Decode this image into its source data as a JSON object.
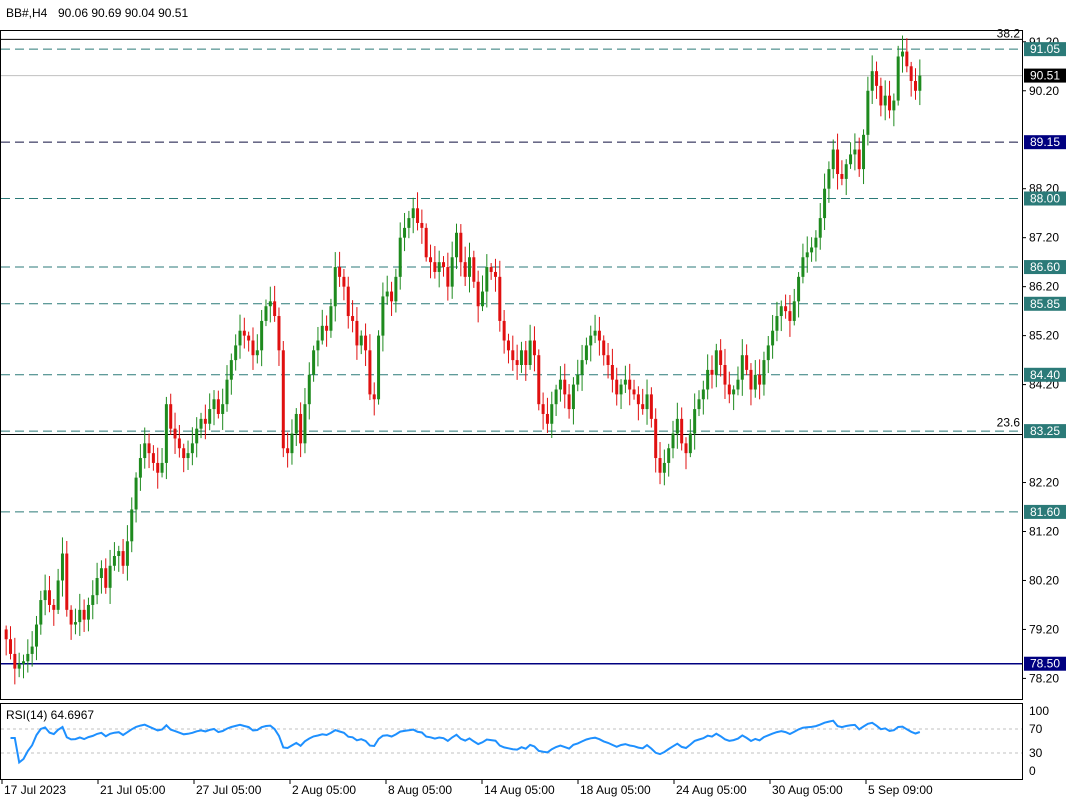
{
  "header": {
    "symbol": "BB#,H4",
    "ohlc": "90.06 90.69 90.04 90.51"
  },
  "rsi_panel": {
    "label": "RSI(14) 64.6967",
    "levels": [
      100,
      70,
      30,
      0
    ]
  },
  "colors": {
    "bull": "#1e8a1e",
    "bear": "#e01010",
    "dash_line": "#2b7a78",
    "support_line": "#000080",
    "rsi_line": "#1e90ff",
    "price_tag": "#000000"
  },
  "chart_data": {
    "type": "candlestick",
    "ylim": [
      77.8,
      91.4
    ],
    "y_ticks": [
      "91.20",
      "90.20",
      "88.20",
      "87.20",
      "86.20",
      "85.20",
      "84.20",
      "82.20",
      "81.20",
      "80.20",
      "79.20",
      "78.20"
    ],
    "x_ticks": [
      "17 Jul 2023",
      "21 Jul 05:00",
      "27 Jul 05:00",
      "2 Aug 05:00",
      "8 Aug 05:00",
      "14 Aug 05:00",
      "18 Aug 05:00",
      "24 Aug 05:00",
      "30 Aug 05:00",
      "5 Sep 09:00"
    ],
    "current_price": {
      "value": 90.51,
      "label": "90.51"
    },
    "horizontal_levels": [
      {
        "value": 91.05,
        "label": "91.05",
        "style": "dash"
      },
      {
        "value": 89.15,
        "label": "89.15",
        "style": "dash-dark"
      },
      {
        "value": 88.0,
        "label": "88.00",
        "style": "dash"
      },
      {
        "value": 86.6,
        "label": "86.60",
        "style": "dash"
      },
      {
        "value": 85.85,
        "label": "85.85",
        "style": "dash"
      },
      {
        "value": 84.4,
        "label": "84.40",
        "style": "dash"
      },
      {
        "value": 83.25,
        "label": "83.25",
        "style": "dash"
      },
      {
        "value": 81.6,
        "label": "81.60",
        "style": "dash"
      },
      {
        "value": 78.5,
        "label": "78.50",
        "style": "solid"
      }
    ],
    "fib_labels": [
      {
        "value": 91.25,
        "label": "38.2"
      },
      {
        "value": 83.3,
        "label": "23.6"
      }
    ],
    "fib_lines": [
      91.25,
      83.18
    ],
    "closes": [
      79.0,
      78.7,
      78.4,
      78.5,
      78.55,
      78.7,
      78.85,
      79.3,
      79.8,
      80.0,
      79.7,
      79.6,
      80.2,
      80.75,
      79.6,
      79.3,
      79.35,
      79.6,
      79.4,
      79.7,
      79.9,
      80.25,
      80.45,
      80.05,
      80.5,
      80.7,
      80.8,
      80.5,
      81.0,
      81.65,
      82.3,
      82.7,
      83.0,
      82.8,
      82.6,
      82.4,
      82.6,
      83.8,
      83.3,
      83.1,
      82.9,
      82.7,
      82.8,
      83.0,
      83.3,
      83.5,
      83.4,
      83.7,
      83.9,
      83.6,
      83.8,
      84.3,
      84.7,
      85.0,
      85.3,
      85.2,
      85.1,
      84.8,
      84.9,
      85.5,
      85.8,
      85.9,
      85.6,
      84.9,
      82.9,
      82.8,
      83.2,
      83.6,
      83.0,
      83.8,
      84.4,
      84.9,
      85.1,
      85.4,
      85.3,
      85.8,
      86.6,
      86.4,
      86.2,
      85.6,
      85.5,
      85.0,
      85.2,
      84.9,
      84.0,
      83.9,
      85.2,
      86.0,
      86.1,
      85.9,
      86.4,
      87.2,
      87.4,
      87.6,
      87.8,
      87.5,
      87.4,
      86.8,
      86.7,
      86.5,
      86.7,
      86.6,
      86.2,
      86.8,
      87.3,
      86.7,
      86.4,
      86.8,
      86.3,
      85.8,
      86.1,
      86.6,
      86.5,
      86.4,
      85.5,
      85.1,
      84.9,
      84.7,
      84.6,
      84.9,
      84.6,
      85.1,
      84.8,
      83.8,
      83.6,
      83.4,
      83.8,
      84.1,
      84.3,
      84.0,
      83.7,
      84.2,
      84.4,
      84.7,
      85.0,
      85.2,
      85.3,
      85.1,
      84.8,
      84.6,
      84.3,
      84.0,
      84.2,
      84.3,
      84.1,
      84.0,
      83.8,
      83.7,
      84.0,
      83.5,
      82.7,
      82.4,
      82.6,
      82.9,
      83.2,
      83.5,
      83.0,
      82.8,
      83.2,
      83.7,
      83.9,
      84.1,
      84.5,
      84.4,
      84.9,
      84.6,
      84.2,
      84.0,
      84.1,
      84.3,
      84.8,
      84.5,
      84.1,
      84.4,
      84.2,
      84.7,
      85.0,
      85.3,
      85.6,
      85.8,
      85.7,
      85.5,
      85.9,
      86.4,
      86.8,
      86.9,
      87.0,
      87.2,
      87.6,
      88.2,
      88.6,
      89.0,
      88.5,
      88.4,
      88.7,
      88.9,
      89.0,
      88.6,
      89.3,
      90.2,
      90.6,
      90.3,
      89.9,
      90.1,
      89.8,
      90.0,
      90.9,
      91.0,
      90.7,
      90.4,
      90.2,
      90.51
    ]
  }
}
